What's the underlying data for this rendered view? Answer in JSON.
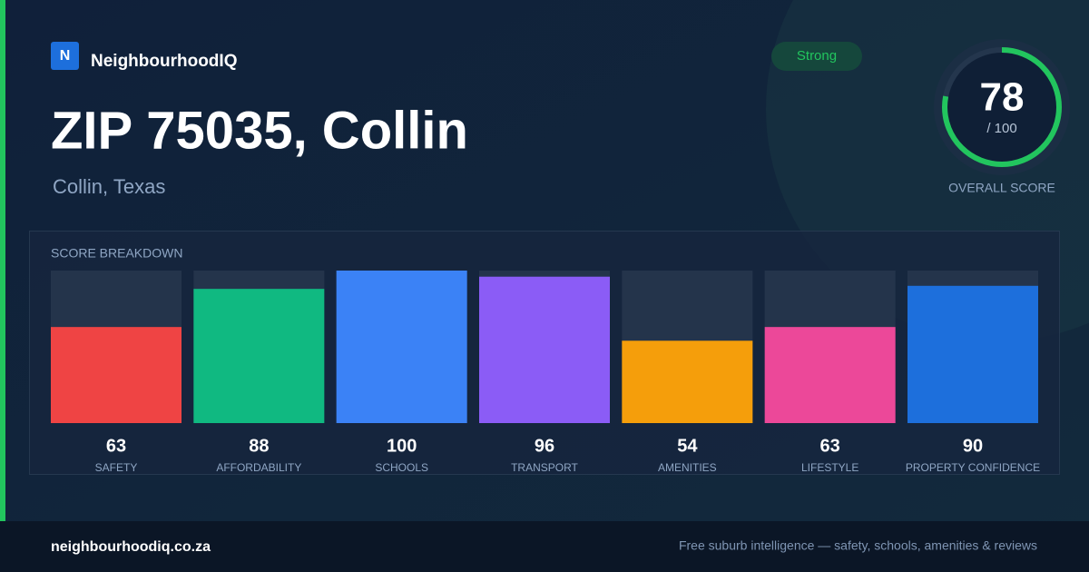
{
  "brand": {
    "logo_letter": "N",
    "name": "NeighbourhoodIQ"
  },
  "header": {
    "title": "ZIP 75035, Collin",
    "subtitle": "Collin, Texas"
  },
  "badge": "Strong",
  "overall": {
    "score": 78,
    "range": [
      0,
      100
    ],
    "max_label": "/ 100",
    "label": "OVERALL SCORE",
    "color": "#22c55e"
  },
  "chart_data": {
    "type": "bar",
    "title": "SCORE BREAKDOWN",
    "categories": [
      "SAFETY",
      "AFFORDABILITY",
      "SCHOOLS",
      "TRANSPORT",
      "AMENITIES",
      "LIFESTYLE",
      "PROPERTY CONFIDENCE"
    ],
    "values": [
      63,
      88,
      100,
      96,
      54,
      63,
      90
    ],
    "colors": [
      "#ef4444",
      "#10b981",
      "#3b82f6",
      "#8b5cf6",
      "#f59e0b",
      "#ec4899",
      "#1d6fdc"
    ],
    "ylim": [
      0,
      100
    ]
  },
  "footer": {
    "site": "neighbourhoodiq.co.za",
    "tagline": "Free suburb intelligence — safety, schools, amenities & reviews"
  }
}
